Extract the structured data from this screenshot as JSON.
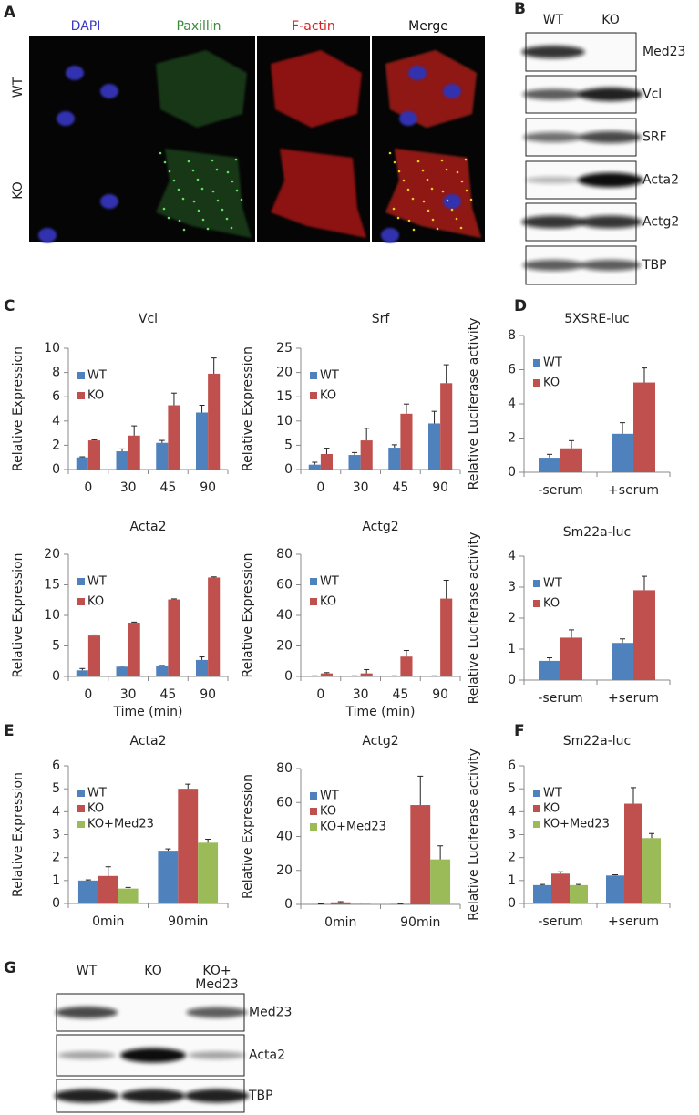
{
  "panel_labels": [
    "A",
    "B",
    "C",
    "D",
    "E",
    "F",
    "G"
  ],
  "panel_a": {
    "columns": [
      "DAPI",
      "Paxillin",
      "F-actin",
      "Merge"
    ],
    "rows": [
      "WT",
      "KO"
    ]
  },
  "panel_b": {
    "lanes": [
      "WT",
      "KO"
    ],
    "rows": [
      "Med23",
      "Vcl",
      "SRF",
      "Acta2",
      "Actg2",
      "TBP"
    ]
  },
  "panel_g": {
    "lanes": [
      "WT",
      "KO",
      "KO+\nMed23"
    ],
    "rows": [
      "Med23",
      "Acta2",
      "TBP"
    ]
  },
  "chart_data": [
    {
      "type": "bar",
      "title": "Vcl",
      "y_label": "Relative Expression",
      "categories": [
        "0",
        "30",
        "45",
        "90"
      ],
      "series": [
        {
          "name": "WT",
          "color": "#4f81bd",
          "values": [
            1.0,
            1.5,
            2.2,
            4.7
          ],
          "errors": [
            0.05,
            0.2,
            0.2,
            0.6
          ]
        },
        {
          "name": "KO",
          "color": "#c0504d",
          "values": [
            2.4,
            2.8,
            5.3,
            7.9
          ],
          "errors": [
            0.05,
            0.8,
            1.0,
            1.3
          ]
        }
      ],
      "ylim": [
        0,
        10
      ],
      "yticks": [
        0,
        2,
        4,
        6,
        8,
        10
      ],
      "legend": "upper left"
    },
    {
      "type": "bar",
      "title": "Srf",
      "y_label": "Relative Expression",
      "categories": [
        "0",
        "30",
        "45",
        "90"
      ],
      "series": [
        {
          "name": "WT",
          "color": "#4f81bd",
          "values": [
            1.0,
            3.0,
            4.5,
            9.5
          ],
          "errors": [
            0.5,
            0.5,
            0.6,
            2.5
          ]
        },
        {
          "name": "KO",
          "color": "#c0504d",
          "values": [
            3.2,
            6.0,
            11.5,
            17.8
          ],
          "errors": [
            1.2,
            2.5,
            2.0,
            3.8
          ]
        }
      ],
      "ylim": [
        0,
        25
      ],
      "yticks": [
        0,
        5,
        10,
        15,
        20,
        25
      ],
      "legend": "upper left"
    },
    {
      "type": "bar",
      "title": "Acta2",
      "y_label": "Relative Expression",
      "x_label": "Time (min)",
      "categories": [
        "0",
        "30",
        "45",
        "90"
      ],
      "series": [
        {
          "name": "WT",
          "color": "#4f81bd",
          "values": [
            1.0,
            1.6,
            1.7,
            2.7
          ],
          "errors": [
            0.3,
            0.1,
            0.1,
            0.5
          ]
        },
        {
          "name": "KO",
          "color": "#c0504d",
          "values": [
            6.7,
            8.8,
            12.6,
            16.2
          ],
          "errors": [
            0.1,
            0.1,
            0.1,
            0.1
          ]
        }
      ],
      "ylim": [
        0,
        20
      ],
      "yticks": [
        0,
        5,
        10,
        15,
        20
      ],
      "legend": "upper left"
    },
    {
      "type": "bar",
      "title": "Actg2",
      "y_label": "Relative Expression",
      "x_label": "Time (min)",
      "categories": [
        "0",
        "30",
        "45",
        "90"
      ],
      "series": [
        {
          "name": "WT",
          "color": "#4f81bd",
          "values": [
            0.3,
            0.3,
            0.3,
            0.3
          ],
          "errors": [
            0.1,
            0.1,
            0.1,
            0.1
          ]
        },
        {
          "name": "KO",
          "color": "#c0504d",
          "values": [
            2,
            2,
            13,
            51
          ],
          "errors": [
            0.5,
            2.5,
            4,
            12
          ]
        }
      ],
      "ylim": [
        0,
        80
      ],
      "yticks": [
        0,
        20,
        40,
        60,
        80
      ],
      "legend": "upper left"
    },
    {
      "type": "bar",
      "title": "5XSRE-luc",
      "y_label": "Relative Luciferase activity",
      "categories": [
        "-serum",
        "+serum"
      ],
      "series": [
        {
          "name": "WT",
          "color": "#4f81bd",
          "values": [
            0.85,
            2.25
          ],
          "errors": [
            0.2,
            0.65
          ]
        },
        {
          "name": "KO",
          "color": "#c0504d",
          "values": [
            1.4,
            5.25
          ],
          "errors": [
            0.45,
            0.85
          ]
        }
      ],
      "ylim": [
        0,
        8
      ],
      "yticks": [
        0,
        2,
        4,
        6,
        8
      ],
      "legend": "upper left"
    },
    {
      "type": "bar",
      "title": "Sm22a-luc",
      "y_label": "Relative Luciferase activity",
      "categories": [
        "-serum",
        "+serum"
      ],
      "series": [
        {
          "name": "WT",
          "color": "#4f81bd",
          "values": [
            0.62,
            1.2
          ],
          "errors": [
            0.1,
            0.13
          ]
        },
        {
          "name": "KO",
          "color": "#c0504d",
          "values": [
            1.37,
            2.9
          ],
          "errors": [
            0.25,
            0.45
          ]
        }
      ],
      "ylim": [
        0,
        4
      ],
      "yticks": [
        0,
        1,
        2,
        3,
        4
      ],
      "legend": "upper left"
    },
    {
      "type": "bar",
      "title": "Acta2",
      "y_label": "Relative Expression",
      "categories": [
        "0min",
        "90min"
      ],
      "series": [
        {
          "name": "WT",
          "color": "#4f81bd",
          "values": [
            1.0,
            2.3
          ],
          "errors": [
            0.03,
            0.08
          ]
        },
        {
          "name": "KO",
          "color": "#c0504d",
          "values": [
            1.2,
            5.0
          ],
          "errors": [
            0.4,
            0.2
          ]
        },
        {
          "name": "KO+Med23",
          "color": "#9bbb59",
          "values": [
            0.65,
            2.65
          ],
          "errors": [
            0.05,
            0.15
          ]
        }
      ],
      "ylim": [
        0,
        6
      ],
      "yticks": [
        0,
        1,
        2,
        3,
        4,
        5,
        6
      ],
      "legend": "upper left"
    },
    {
      "type": "bar",
      "title": "Actg2",
      "y_label": "Relative Expression",
      "categories": [
        "0min",
        "90min"
      ],
      "series": [
        {
          "name": "WT",
          "color": "#4f81bd",
          "values": [
            0.2,
            0.3
          ],
          "errors": [
            0.1,
            0.1
          ]
        },
        {
          "name": "KO",
          "color": "#c0504d",
          "values": [
            1.2,
            58.5
          ],
          "errors": [
            0.4,
            17
          ]
        },
        {
          "name": "KO+Med23",
          "color": "#9bbb59",
          "values": [
            0.5,
            26.5
          ],
          "errors": [
            0.3,
            8
          ]
        }
      ],
      "ylim": [
        0,
        80
      ],
      "yticks": [
        0,
        20,
        40,
        60,
        80
      ],
      "legend": "upper left"
    },
    {
      "type": "bar",
      "title": "Sm22a-luc",
      "y_label": "Relative Luciferase activity",
      "categories": [
        "-serum",
        "+serum"
      ],
      "series": [
        {
          "name": "WT",
          "color": "#4f81bd",
          "values": [
            0.8,
            1.22
          ],
          "errors": [
            0.03,
            0.03
          ]
        },
        {
          "name": "KO",
          "color": "#c0504d",
          "values": [
            1.3,
            4.35
          ],
          "errors": [
            0.08,
            0.7
          ]
        },
        {
          "name": "KO+Med23",
          "color": "#9bbb59",
          "values": [
            0.8,
            2.85
          ],
          "errors": [
            0.03,
            0.2
          ]
        }
      ],
      "ylim": [
        0,
        6
      ],
      "yticks": [
        0,
        1,
        2,
        3,
        4,
        5,
        6
      ],
      "legend": "upper left"
    }
  ]
}
